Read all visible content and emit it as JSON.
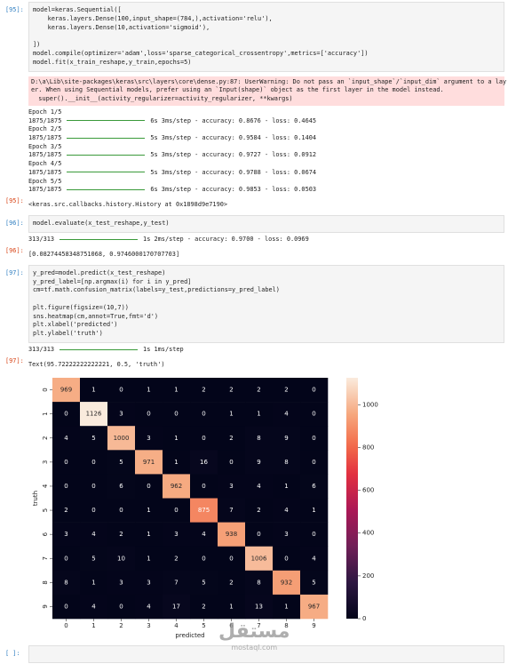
{
  "cells": [
    {
      "prompt": "[95]:",
      "code": [
        [
          "model=keras.Sequential([",
          "    keras.layers.Dense(100,input_shape=(784,),activation='relu'),",
          "    keras.layers.Dense(10,activation='sigmoid'),"
        ],
        [
          "])",
          "model.compile(optimizer='adam',loss='sparse_categorical_crossentropy',metrics=['accuracy'])",
          "model.fit(x_train_reshape,y_train,epochs=5)"
        ]
      ],
      "warning": [
        "D:\\a\\Lib\\site-packages\\keras\\src\\layers\\core\\dense.py:87: UserWarning: Do not pass an `input_shape`/`input_dim` argument to a lay",
        "er. When using Sequential models, prefer using an `Input(shape)` object as the first layer in the model instead.",
        "  super().__init__(activity_regularizer=activity_regularizer, **kwargs)"
      ],
      "stream": [
        {
          "text": "Epoch 1/5"
        },
        {
          "step": "1875/1875",
          "rest": "6s 3ms/step - accuracy: 0.8676 - loss: 0.4645"
        },
        {
          "text": "Epoch 2/5"
        },
        {
          "step": "1875/1875",
          "rest": "5s 3ms/step - accuracy: 0.9584 - loss: 0.1404"
        },
        {
          "text": "Epoch 3/5"
        },
        {
          "step": "1875/1875",
          "rest": "5s 3ms/step - accuracy: 0.9727 - loss: 0.0912"
        },
        {
          "text": "Epoch 4/5"
        },
        {
          "step": "1875/1875",
          "rest": "5s 3ms/step - accuracy: 0.9788 - loss: 0.0674"
        },
        {
          "text": "Epoch 5/5"
        },
        {
          "step": "1875/1875",
          "rest": "6s 3ms/step - accuracy: 0.9853 - loss: 0.0503"
        }
      ],
      "result_prompt": "[95]:",
      "result": "<keras.src.callbacks.history.History at 0x1898d9e7190>"
    },
    {
      "prompt": "[96]:",
      "code": [
        [
          "model.evaluate(x_test_reshape,y_test)"
        ]
      ],
      "stream": [
        {
          "step": "313/313",
          "rest": "1s 2ms/step - accuracy: 0.9700 - loss: 0.0969"
        }
      ],
      "result_prompt": "[96]:",
      "result": "[0.08274458348751068, 0.9746000170707703]"
    },
    {
      "prompt": "[97]:",
      "code": [
        [
          "y_pred=model.predict(x_test_reshape)",
          "y_pred_label=[np.argmax(i) for i in y_pred]",
          "cm=tf.math.confusion_matrix(labels=y_test,predictions=y_pred_label)"
        ],
        [
          "plt.figure(figsize=(10,7))",
          "sns.heatmap(cm,annot=True,fmt='d')",
          "plt.xlabel('predicted')",
          "plt.ylabel('truth')"
        ]
      ],
      "stream": [
        {
          "step": "313/313",
          "rest": "1s 1ms/step"
        }
      ],
      "result_prompt": "[97]:",
      "result": "Text(95.72222222222221, 0.5, 'truth')"
    },
    {
      "prompt": "[ ]:"
    }
  ],
  "chart_data": {
    "type": "heatmap",
    "colormap": "rocket",
    "x": [
      "0",
      "1",
      "2",
      "3",
      "4",
      "5",
      "6",
      "7",
      "8",
      "9"
    ],
    "y": [
      "0",
      "1",
      "2",
      "3",
      "4",
      "5",
      "6",
      "7",
      "8",
      "9"
    ],
    "values": [
      [
        969,
        1,
        0,
        1,
        1,
        2,
        2,
        2,
        2,
        0
      ],
      [
        0,
        1126,
        3,
        0,
        0,
        0,
        1,
        1,
        4,
        0
      ],
      [
        4,
        5,
        1000,
        3,
        1,
        0,
        2,
        8,
        9,
        0
      ],
      [
        0,
        0,
        5,
        971,
        1,
        16,
        0,
        9,
        8,
        0
      ],
      [
        0,
        0,
        6,
        0,
        962,
        0,
        3,
        4,
        1,
        6
      ],
      [
        2,
        0,
        0,
        1,
        0,
        875,
        7,
        2,
        4,
        1
      ],
      [
        3,
        4,
        2,
        1,
        3,
        4,
        938,
        0,
        3,
        0
      ],
      [
        0,
        5,
        10,
        1,
        2,
        0,
        0,
        1006,
        0,
        4
      ],
      [
        8,
        1,
        3,
        3,
        7,
        5,
        2,
        8,
        932,
        5
      ],
      [
        0,
        4,
        0,
        4,
        17,
        2,
        1,
        13,
        1,
        967
      ]
    ],
    "zlim": [
      0,
      1126
    ],
    "zticks": [
      0,
      200,
      400,
      600,
      800,
      1000
    ],
    "xlabel": "predicted",
    "ylabel": "truth"
  },
  "watermark": {
    "arabic": "مستقل",
    "latin": "mostaql.com"
  }
}
